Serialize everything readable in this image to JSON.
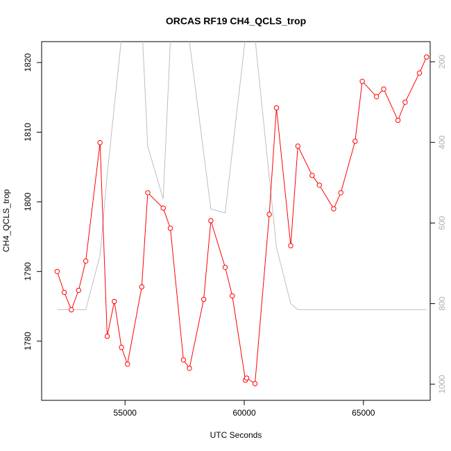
{
  "chart_data": {
    "type": "line",
    "title": "ORCAS RF19 CH4_QCLS_trop",
    "xlabel": "UTC Seconds",
    "ylabel": "CH4_QCLS_trop",
    "xlim": [
      51500,
      67800
    ],
    "ylim": [
      1771.5,
      1823
    ],
    "y2lim": [
      1040,
      150
    ],
    "x_ticks": [
      55000,
      60000,
      65000
    ],
    "y_ticks": [
      1780,
      1790,
      1800,
      1810,
      1820
    ],
    "y2_ticks": [
      200,
      400,
      600,
      800,
      1000
    ],
    "series": [
      {
        "axis": "left",
        "color": "#ff0000",
        "marker": "open-circle",
        "x": [
          52150,
          52450,
          52750,
          53050,
          53350,
          53950,
          54250,
          54550,
          54850,
          55100,
          55700,
          55950,
          56600,
          56900,
          57450,
          57700,
          58300,
          58600,
          59200,
          59500,
          60050,
          60100,
          60450,
          61050,
          61350,
          61950,
          62250,
          62850,
          63150,
          63750,
          64050,
          64650,
          64950,
          65550,
          65850,
          66450,
          66750,
          67350,
          67650
        ],
        "y": [
          1790,
          1787,
          1784.5,
          1787.3,
          1791.5,
          1808.5,
          1780.7,
          1785.7,
          1779.1,
          1776.7,
          1787.8,
          1801.3,
          1799.1,
          1796.2,
          1777.3,
          1776.1,
          1786,
          1797.3,
          1790.6,
          1786.5,
          1774.4,
          1774.7,
          1773.9,
          1798.2,
          1813.5,
          1793.7,
          1808,
          1803.8,
          1802.4,
          1799,
          1801.3,
          1808.7,
          1817.3,
          1815.1,
          1816.2,
          1811.7,
          1814.3,
          1818.5,
          1820.8
        ]
      },
      {
        "axis": "right",
        "color": "#bebebe",
        "marker": "none",
        "x": [
          52150,
          53350,
          53950,
          54250,
          54850,
          55700,
          55950,
          56600,
          56900,
          57450,
          57700,
          58600,
          59200,
          60050,
          60450,
          61350,
          61950,
          62250,
          67650
        ],
        "y": [
          815,
          815,
          680,
          480,
          140,
          100,
          410,
          540,
          150,
          120,
          150,
          565,
          575,
          140,
          140,
          660,
          800,
          815,
          815
        ]
      }
    ]
  }
}
